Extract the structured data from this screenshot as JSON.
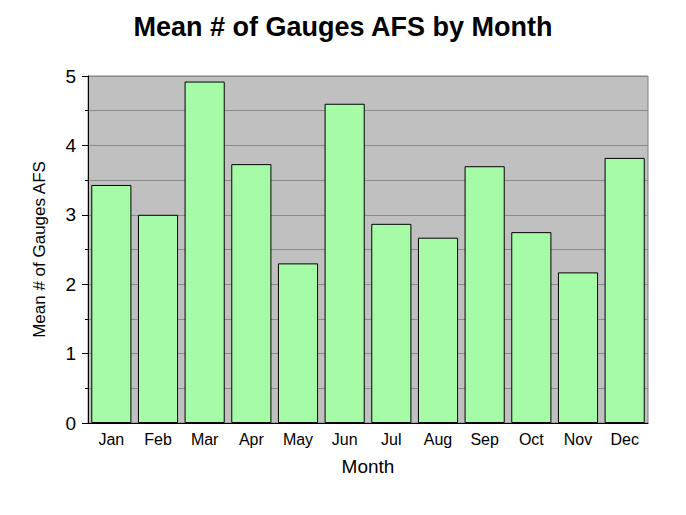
{
  "chart_data": {
    "type": "bar",
    "title": "Mean # of Gauges AFS by Month",
    "x_label": "Month",
    "y_label": "Mean # of Gauges AFS",
    "categories": [
      "Jan",
      "Feb",
      "Mar",
      "Apr",
      "May",
      "Jun",
      "Jul",
      "Aug",
      "Sep",
      "Oct",
      "Nov",
      "Dec"
    ],
    "values": [
      3.43,
      3.0,
      4.92,
      3.73,
      2.3,
      4.6,
      2.87,
      2.67,
      3.7,
      2.75,
      2.17,
      3.82
    ],
    "color": "#a6fca6",
    "ylim": [
      0,
      5
    ],
    "yticks": [
      0,
      1,
      2,
      3,
      4,
      5
    ],
    "grid": true
  }
}
